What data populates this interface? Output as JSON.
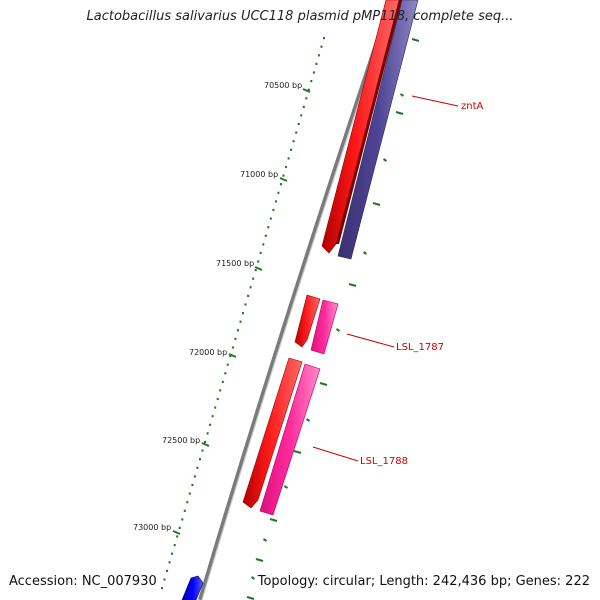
{
  "title": "Lactobacillus salivarius UCC118 plasmid pMP118, complete seq...",
  "footer": {
    "accession": "Accession: NC_007930",
    "summary": "Topology: circular; Length: 242,436 bp; Genes: 222"
  },
  "colors": {
    "backbone": "#8a8a8a",
    "tick": "#1e7a1e",
    "cds": "#ff0000",
    "gene_purple": "#4a3f8f",
    "gene_pink": "#ff2b9c",
    "gene_blue": "#0000ff",
    "label": "#cc0000"
  },
  "ticks": [
    {
      "label": "70500 bp"
    },
    {
      "label": "71000 bp"
    },
    {
      "label": "71500 bp"
    },
    {
      "label": "72000 bp"
    },
    {
      "label": "72500 bp"
    },
    {
      "label": "73000 bp"
    }
  ],
  "gene_labels": [
    {
      "name": "zntA"
    },
    {
      "name": "LSL_1787"
    },
    {
      "name": "LSL_1788"
    }
  ]
}
